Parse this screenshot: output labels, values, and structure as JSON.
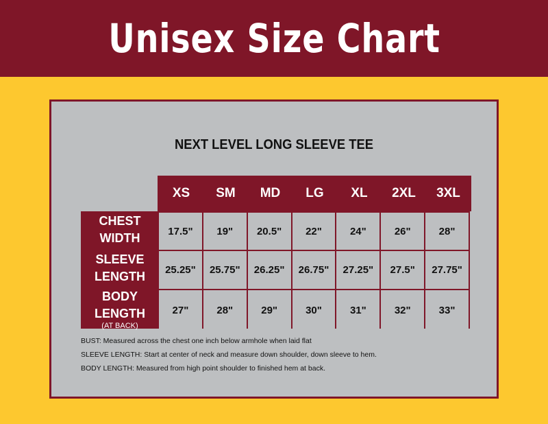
{
  "title": "Unisex Size Chart",
  "subtitle": "NEXT LEVEL LONG SLEEVE TEE",
  "colors": {
    "maroon": "#7f1628",
    "gold": "#fdc82f",
    "panel": "#bdbfc1"
  },
  "table": {
    "sizes": [
      "XS",
      "SM",
      "MD",
      "LG",
      "XL",
      "2XL",
      "3XL"
    ],
    "rows": [
      {
        "label1": "CHEST",
        "label2": "WIDTH",
        "values": [
          "17.5\"",
          "19\"",
          "20.5\"",
          "22\"",
          "24\"",
          "26\"",
          "28\""
        ]
      },
      {
        "label1": "SLEEVE",
        "label2": "LENGTH",
        "values": [
          "25.25\"",
          "25.75\"",
          "26.25\"",
          "26.75\"",
          "27.25\"",
          "27.5\"",
          "27.75\""
        ]
      },
      {
        "label1": "BODY",
        "label2": "LENGTH",
        "label3": "(AT BACK)",
        "values": [
          "27\"",
          "28\"",
          "29\"",
          "30\"",
          "31\"",
          "32\"",
          "33\""
        ]
      }
    ]
  },
  "notes": [
    {
      "term": "BUST:",
      "text": " Measured across the chest one inch below armhole when laid flat"
    },
    {
      "term": "SLEEVE LENGTH:",
      "text": " Start at center of neck and measure down shoulder, down sleeve to hem."
    },
    {
      "term": "BODY LENGTH:",
      "text": " Measured from high point shoulder to finished hem at back."
    }
  ]
}
